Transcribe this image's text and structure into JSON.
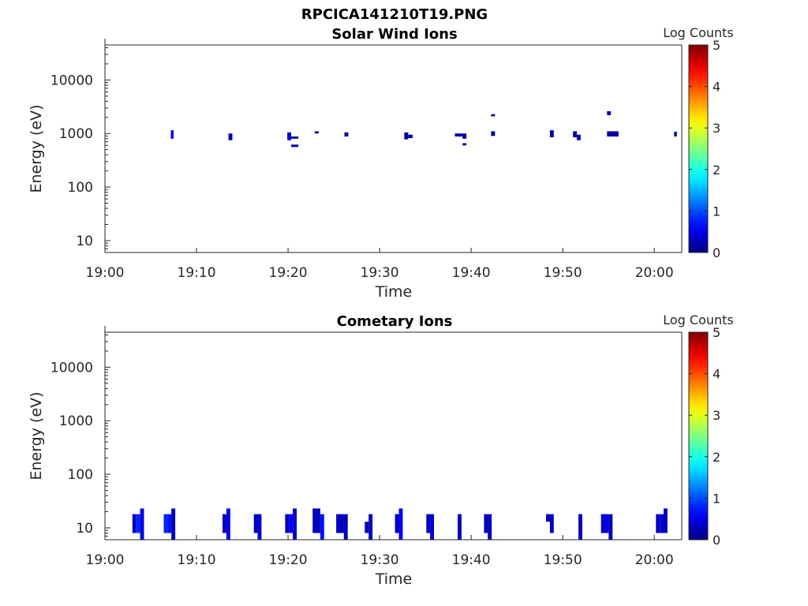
{
  "figure_title": "RPCICA141210T19.PNG",
  "chart_data": [
    {
      "type": "heatmap",
      "title": "Solar Wind Ions",
      "xlabel": "Time",
      "ylabel": "Energy (eV)",
      "xlim": [
        "19:00",
        "20:03"
      ],
      "ylim": [
        6,
        45000
      ],
      "y_scale": "log",
      "x_ticks": [
        "19:00",
        "19:10",
        "19:20",
        "19:30",
        "19:40",
        "19:50",
        "20:00"
      ],
      "y_ticks": [
        10,
        100,
        1000,
        10000
      ],
      "y_tick_labels": [
        "10",
        "100",
        "1000",
        "10000"
      ],
      "colorbar": {
        "label": "Log Counts",
        "range": [
          0,
          5
        ],
        "ticks": [
          "0",
          "1",
          "2",
          "3",
          "4",
          "5"
        ]
      },
      "cells": [
        {
          "t0": 19.12,
          "t1": 19.125,
          "e0": 800,
          "e1": 1150,
          "v": 0.6
        },
        {
          "t0": 19.225,
          "t1": 19.232,
          "e0": 750,
          "e1": 1000,
          "v": 0.3
        },
        {
          "t0": 19.332,
          "t1": 19.339,
          "e0": 750,
          "e1": 1050,
          "v": 0.4
        },
        {
          "t0": 19.339,
          "t1": 19.352,
          "e0": 800,
          "e1": 880,
          "v": 0.2
        },
        {
          "t0": 19.339,
          "t1": 19.352,
          "e0": 560,
          "e1": 620,
          "v": 0.2
        },
        {
          "t0": 19.382,
          "t1": 19.389,
          "e0": 1000,
          "e1": 1100,
          "v": 0.2
        },
        {
          "t0": 19.436,
          "t1": 19.443,
          "e0": 880,
          "e1": 1050,
          "v": 0.2
        },
        {
          "t0": 19.545,
          "t1": 19.552,
          "e0": 780,
          "e1": 1050,
          "v": 0.2
        },
        {
          "t0": 19.552,
          "t1": 19.56,
          "e0": 820,
          "e1": 950,
          "v": 0.2
        },
        {
          "t0": 19.637,
          "t1": 19.651,
          "e0": 880,
          "e1": 1000,
          "v": 0.2
        },
        {
          "t0": 19.651,
          "t1": 19.658,
          "e0": 600,
          "e1": 660,
          "v": 0.2
        },
        {
          "t0": 19.651,
          "t1": 19.658,
          "e0": 800,
          "e1": 1000,
          "v": 0.2
        },
        {
          "t0": 19.703,
          "t1": 19.71,
          "e0": 2100,
          "e1": 2300,
          "v": 0.2
        },
        {
          "t0": 19.703,
          "t1": 19.71,
          "e0": 900,
          "e1": 1100,
          "v": 0.2
        },
        {
          "t0": 19.81,
          "t1": 19.817,
          "e0": 850,
          "e1": 1150,
          "v": 0.2
        },
        {
          "t0": 19.852,
          "t1": 19.859,
          "e0": 850,
          "e1": 1100,
          "v": 0.2
        },
        {
          "t0": 19.859,
          "t1": 19.866,
          "e0": 750,
          "e1": 950,
          "v": 0.2
        },
        {
          "t0": 19.914,
          "t1": 19.921,
          "e0": 2200,
          "e1": 2600,
          "v": 0.2
        },
        {
          "t0": 19.914,
          "t1": 19.935,
          "e0": 880,
          "e1": 1100,
          "v": 0.2
        },
        {
          "t0": 20.036,
          "t1": 20.041,
          "e0": 880,
          "e1": 1080,
          "v": 0.2
        }
      ]
    },
    {
      "type": "heatmap",
      "title": "Cometary Ions",
      "xlabel": "Time",
      "ylabel": "Energy (eV)",
      "xlim": [
        "19:00",
        "20:03"
      ],
      "ylim": [
        6,
        45000
      ],
      "y_scale": "log",
      "x_ticks": [
        "19:00",
        "19:10",
        "19:20",
        "19:30",
        "19:40",
        "19:50",
        "20:00"
      ],
      "y_ticks": [
        10,
        100,
        1000,
        10000
      ],
      "y_tick_labels": [
        "10",
        "100",
        "1000",
        "10000"
      ],
      "colorbar": {
        "label": "Log Counts",
        "range": [
          0,
          5
        ],
        "ticks": [
          "0",
          "1",
          "2",
          "3",
          "4",
          "5"
        ]
      },
      "cells": [
        {
          "t0": 19.05,
          "t1": 19.057,
          "e0": 8,
          "e1": 18,
          "v": 0.3
        },
        {
          "t0": 19.057,
          "t1": 19.064,
          "e0": 8,
          "e1": 18,
          "v": 0.8
        },
        {
          "t0": 19.064,
          "t1": 19.071,
          "e0": 6,
          "e1": 23,
          "v": 0.5
        },
        {
          "t0": 19.107,
          "t1": 19.114,
          "e0": 8,
          "e1": 18,
          "v": 0.8
        },
        {
          "t0": 19.114,
          "t1": 19.121,
          "e0": 8,
          "e1": 18,
          "v": 0.7
        },
        {
          "t0": 19.121,
          "t1": 19.128,
          "e0": 6,
          "e1": 23,
          "v": 0.3
        },
        {
          "t0": 19.214,
          "t1": 19.221,
          "e0": 8,
          "e1": 18,
          "v": 0.3
        },
        {
          "t0": 19.221,
          "t1": 19.228,
          "e0": 6,
          "e1": 23,
          "v": 0.5
        },
        {
          "t0": 19.271,
          "t1": 19.278,
          "e0": 8,
          "e1": 18,
          "v": 0.3
        },
        {
          "t0": 19.278,
          "t1": 19.285,
          "e0": 6,
          "e1": 18,
          "v": 0.4
        },
        {
          "t0": 19.328,
          "t1": 19.335,
          "e0": 8,
          "e1": 18,
          "v": 0.3
        },
        {
          "t0": 19.335,
          "t1": 19.342,
          "e0": 8,
          "e1": 18,
          "v": 0.6
        },
        {
          "t0": 19.342,
          "t1": 19.349,
          "e0": 6,
          "e1": 23,
          "v": 0.4
        },
        {
          "t0": 19.378,
          "t1": 19.385,
          "e0": 8,
          "e1": 23,
          "v": 0.3
        },
        {
          "t0": 19.385,
          "t1": 19.392,
          "e0": 8,
          "e1": 23,
          "v": 0.3
        },
        {
          "t0": 19.392,
          "t1": 19.399,
          "e0": 6,
          "e1": 18,
          "v": 0.7
        },
        {
          "t0": 19.421,
          "t1": 19.428,
          "e0": 8,
          "e1": 18,
          "v": 0.3
        },
        {
          "t0": 19.428,
          "t1": 19.435,
          "e0": 8,
          "e1": 18,
          "v": 0.3
        },
        {
          "t0": 19.435,
          "t1": 19.442,
          "e0": 6,
          "e1": 18,
          "v": 0.3
        },
        {
          "t0": 19.473,
          "t1": 19.48,
          "e0": 8,
          "e1": 13,
          "v": 0.3
        },
        {
          "t0": 19.48,
          "t1": 19.487,
          "e0": 6,
          "e1": 18,
          "v": 0.3
        },
        {
          "t0": 19.528,
          "t1": 19.535,
          "e0": 8,
          "e1": 18,
          "v": 0.3
        },
        {
          "t0": 19.535,
          "t1": 19.542,
          "e0": 6,
          "e1": 23,
          "v": 0.6
        },
        {
          "t0": 19.585,
          "t1": 19.592,
          "e0": 8,
          "e1": 18,
          "v": 0.3
        },
        {
          "t0": 19.592,
          "t1": 19.599,
          "e0": 6,
          "e1": 18,
          "v": 0.4
        },
        {
          "t0": 19.642,
          "t1": 19.649,
          "e0": 6,
          "e1": 18,
          "v": 0.3
        },
        {
          "t0": 19.69,
          "t1": 19.697,
          "e0": 8,
          "e1": 18,
          "v": 0.3
        },
        {
          "t0": 19.697,
          "t1": 19.704,
          "e0": 6,
          "e1": 18,
          "v": 0.3
        },
        {
          "t0": 19.803,
          "t1": 19.81,
          "e0": 13,
          "e1": 18,
          "v": 0.3
        },
        {
          "t0": 19.81,
          "t1": 19.817,
          "e0": 8,
          "e1": 18,
          "v": 0.3
        },
        {
          "t0": 19.862,
          "t1": 19.869,
          "e0": 6,
          "e1": 18,
          "v": 0.3
        },
        {
          "t0": 19.903,
          "t1": 19.91,
          "e0": 8,
          "e1": 18,
          "v": 0.4
        },
        {
          "t0": 19.91,
          "t1": 19.917,
          "e0": 8,
          "e1": 18,
          "v": 0.5
        },
        {
          "t0": 19.917,
          "t1": 19.924,
          "e0": 6,
          "e1": 18,
          "v": 0.3
        },
        {
          "t0": 20.003,
          "t1": 20.01,
          "e0": 8,
          "e1": 18,
          "v": 0.3
        },
        {
          "t0": 20.01,
          "t1": 20.017,
          "e0": 8,
          "e1": 18,
          "v": 0.4
        },
        {
          "t0": 20.017,
          "t1": 20.024,
          "e0": 8,
          "e1": 23,
          "v": 0.3
        }
      ]
    }
  ]
}
